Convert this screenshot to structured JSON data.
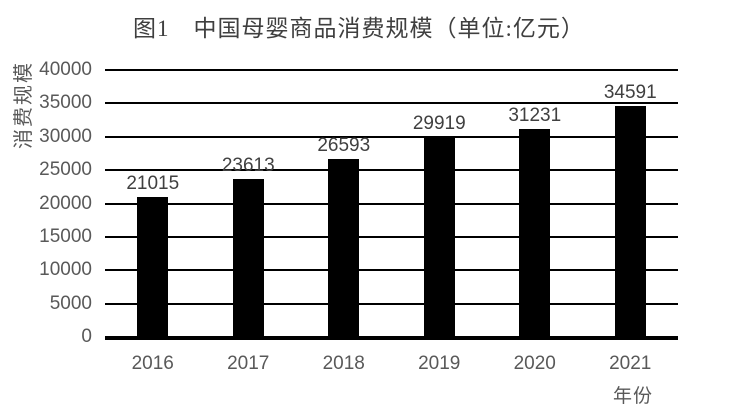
{
  "chart_data": {
    "type": "bar",
    "title": "图1　中国母婴商品消费规模（单位:亿元）",
    "categories": [
      "2016",
      "2017",
      "2018",
      "2019",
      "2020",
      "2021"
    ],
    "values": [
      21015,
      23613,
      26593,
      29919,
      31231,
      34591
    ],
    "data_labels": [
      "21015",
      "23613",
      "26593",
      "29919",
      "31231",
      "34591"
    ],
    "xlabel": "年份",
    "ylabel": "消费规模",
    "ylim": [
      0,
      40000
    ],
    "ytick_step": 5000,
    "yticks": [
      0,
      5000,
      10000,
      15000,
      20000,
      25000,
      30000,
      35000,
      40000
    ],
    "grid": true,
    "legend_position": "none",
    "colors": {
      "bar": "#000000",
      "gridline": "#000000",
      "axis_line": "#000000",
      "tick_label": "#595959",
      "data_label": "#404040",
      "title": "#3f3f3f",
      "background": "#ffffff"
    }
  }
}
